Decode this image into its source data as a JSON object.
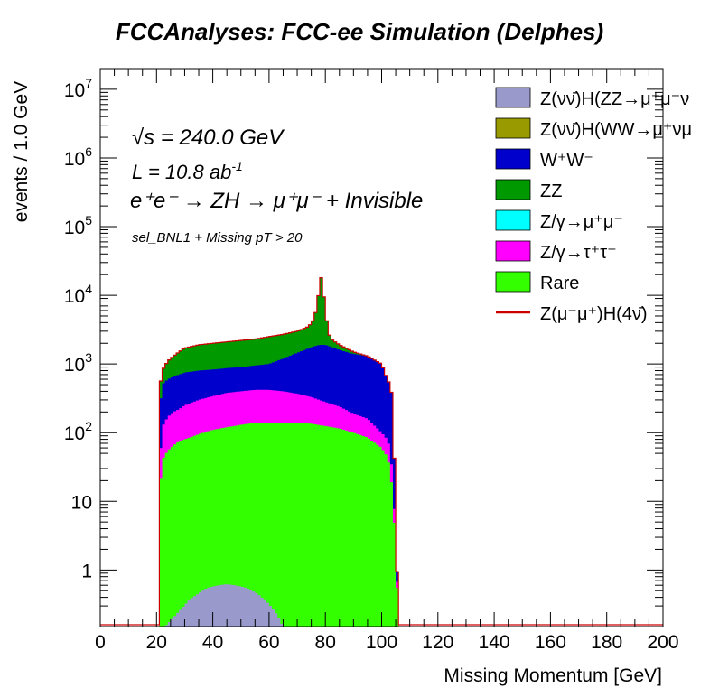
{
  "page_title": "FCCAnalyses: FCC-ee Simulation (Delphes)",
  "chart_data": {
    "type": "area",
    "title": "FCCAnalyses: FCC-ee Simulation (Delphes)",
    "xlabel": "Missing Momentum [GeV]",
    "ylabel": "events / 1.0 GeV",
    "xlim": [
      0,
      200
    ],
    "ylim": [
      0.15,
      20000000
    ],
    "yscale": "log",
    "x_ticks": [
      0,
      20,
      40,
      60,
      80,
      100,
      120,
      140,
      160,
      180,
      200
    ],
    "y_ticks": [
      {
        "value": 1,
        "label": "1"
      },
      {
        "value": 10,
        "label": "10"
      },
      {
        "value": 100,
        "label": "10",
        "exp": "2"
      },
      {
        "value": 1000,
        "label": "10",
        "exp": "3"
      },
      {
        "value": 10000,
        "label": "10",
        "exp": "4"
      },
      {
        "value": 100000,
        "label": "10",
        "exp": "5"
      },
      {
        "value": 1000000,
        "label": "10",
        "exp": "6"
      },
      {
        "value": 10000000,
        "label": "10",
        "exp": "7"
      }
    ],
    "annotations": {
      "energy": "√s = 240.0 GeV",
      "lumi": "L = 10.8 ab",
      "lumi_exp": "-1",
      "process": "e⁺e⁻ → ZH → μ⁺μ⁻ + Invisible",
      "selection": "sel_BNL1 + Missing pT > 20"
    },
    "legend_position": "top-right",
    "legend": [
      {
        "label": "Z(νν̄)H(ZZ→μ⁺μ⁻ν",
        "color": "#9999cc",
        "kind": "fill"
      },
      {
        "label": "Z(νν̄)H(WW→μ⁺νμ",
        "color": "#999900",
        "kind": "fill"
      },
      {
        "label": "W⁺W⁻",
        "color": "#0000cc",
        "kind": "fill"
      },
      {
        "label": "ZZ",
        "color": "#009900",
        "kind": "fill"
      },
      {
        "label": "Z/γ→μ⁺μ⁻",
        "color": "#00ffff",
        "kind": "fill"
      },
      {
        "label": "Z/γ→τ⁺τ⁻",
        "color": "#ff00ff",
        "kind": "fill"
      },
      {
        "label": "Rare",
        "color": "#33ff00",
        "kind": "fill"
      },
      {
        "label": "Z(μ⁻μ⁺)H(4ν̄)",
        "color": "#ff0000",
        "kind": "line"
      }
    ],
    "stack_boundaries": [
      {
        "name": "Rare",
        "color": "#33ff00",
        "points": [
          [
            20.5,
            0.15
          ],
          [
            21,
            12
          ],
          [
            22,
            40
          ],
          [
            24,
            55
          ],
          [
            26,
            65
          ],
          [
            28,
            75
          ],
          [
            30,
            80
          ],
          [
            35,
            95
          ],
          [
            40,
            110
          ],
          [
            45,
            120
          ],
          [
            50,
            130
          ],
          [
            55,
            140
          ],
          [
            60,
            140
          ],
          [
            65,
            140
          ],
          [
            70,
            140
          ],
          [
            75,
            135
          ],
          [
            80,
            125
          ],
          [
            85,
            115
          ],
          [
            90,
            100
          ],
          [
            95,
            85
          ],
          [
            100,
            60
          ],
          [
            102,
            45
          ],
          [
            103,
            30
          ],
          [
            104,
            12
          ],
          [
            105,
            2
          ],
          [
            106,
            0.15
          ]
        ]
      },
      {
        "name": "Z/γ→τ⁺τ⁻",
        "color": "#ff00ff",
        "points": [
          [
            20.5,
            0.15
          ],
          [
            21,
            30
          ],
          [
            22,
            120
          ],
          [
            24,
            170
          ],
          [
            26,
            200
          ],
          [
            28,
            220
          ],
          [
            30,
            250
          ],
          [
            35,
            300
          ],
          [
            40,
            340
          ],
          [
            45,
            380
          ],
          [
            50,
            400
          ],
          [
            55,
            420
          ],
          [
            60,
            420
          ],
          [
            65,
            400
          ],
          [
            70,
            370
          ],
          [
            75,
            330
          ],
          [
            80,
            280
          ],
          [
            85,
            240
          ],
          [
            90,
            190
          ],
          [
            95,
            160
          ],
          [
            100,
            100
          ],
          [
            102,
            80
          ],
          [
            103,
            60
          ],
          [
            104,
            20
          ],
          [
            105,
            3
          ],
          [
            106,
            0.15
          ]
        ]
      },
      {
        "name": "W⁺W⁻",
        "color": "#0000cc",
        "points": [
          [
            20.5,
            0.15
          ],
          [
            21,
            200
          ],
          [
            22,
            500
          ],
          [
            24,
            600
          ],
          [
            26,
            650
          ],
          [
            28,
            700
          ],
          [
            30,
            750
          ],
          [
            35,
            800
          ],
          [
            40,
            830
          ],
          [
            45,
            870
          ],
          [
            50,
            900
          ],
          [
            55,
            950
          ],
          [
            60,
            1000
          ],
          [
            65,
            1200
          ],
          [
            70,
            1450
          ],
          [
            75,
            1750
          ],
          [
            78,
            1900
          ],
          [
            80,
            1900
          ],
          [
            85,
            1600
          ],
          [
            90,
            1400
          ],
          [
            95,
            1300
          ],
          [
            100,
            1000
          ],
          [
            102,
            600
          ],
          [
            103,
            500
          ],
          [
            104,
            300
          ],
          [
            105,
            6
          ],
          [
            106,
            0.15
          ]
        ]
      },
      {
        "name": "ZZ",
        "color": "#009900",
        "points": [
          [
            20.5,
            0.15
          ],
          [
            21,
            400
          ],
          [
            22,
            800
          ],
          [
            24,
            1100
          ],
          [
            26,
            1300
          ],
          [
            28,
            1500
          ],
          [
            30,
            1700
          ],
          [
            35,
            1900
          ],
          [
            40,
            2000
          ],
          [
            45,
            2100
          ],
          [
            50,
            2200
          ],
          [
            55,
            2300
          ],
          [
            60,
            2500
          ],
          [
            65,
            2700
          ],
          [
            70,
            3000
          ],
          [
            74,
            3500
          ],
          [
            76,
            4500
          ],
          [
            77,
            7000
          ],
          [
            78,
            14000
          ],
          [
            78.6,
            19000
          ],
          [
            79,
            15000
          ],
          [
            80,
            6000
          ],
          [
            81,
            3000
          ],
          [
            82,
            2300
          ],
          [
            85,
            1900
          ],
          [
            90,
            1500
          ],
          [
            95,
            1300
          ],
          [
            100,
            1000
          ],
          [
            102,
            600
          ],
          [
            103,
            500
          ],
          [
            104,
            300
          ],
          [
            105,
            6
          ],
          [
            106,
            0.15
          ]
        ]
      }
    ],
    "signal_hzz": {
      "name": "Z(νν̄)H(ZZ→μ⁺μ⁻ν",
      "color": "#9999cc",
      "points": [
        [
          23,
          0.15
        ],
        [
          28,
          0.25
        ],
        [
          32,
          0.38
        ],
        [
          38,
          0.55
        ],
        [
          42,
          0.6
        ],
        [
          45,
          0.62
        ],
        [
          48,
          0.6
        ],
        [
          52,
          0.55
        ],
        [
          56,
          0.45
        ],
        [
          60,
          0.32
        ],
        [
          63,
          0.22
        ],
        [
          65,
          0.15
        ]
      ]
    }
  }
}
